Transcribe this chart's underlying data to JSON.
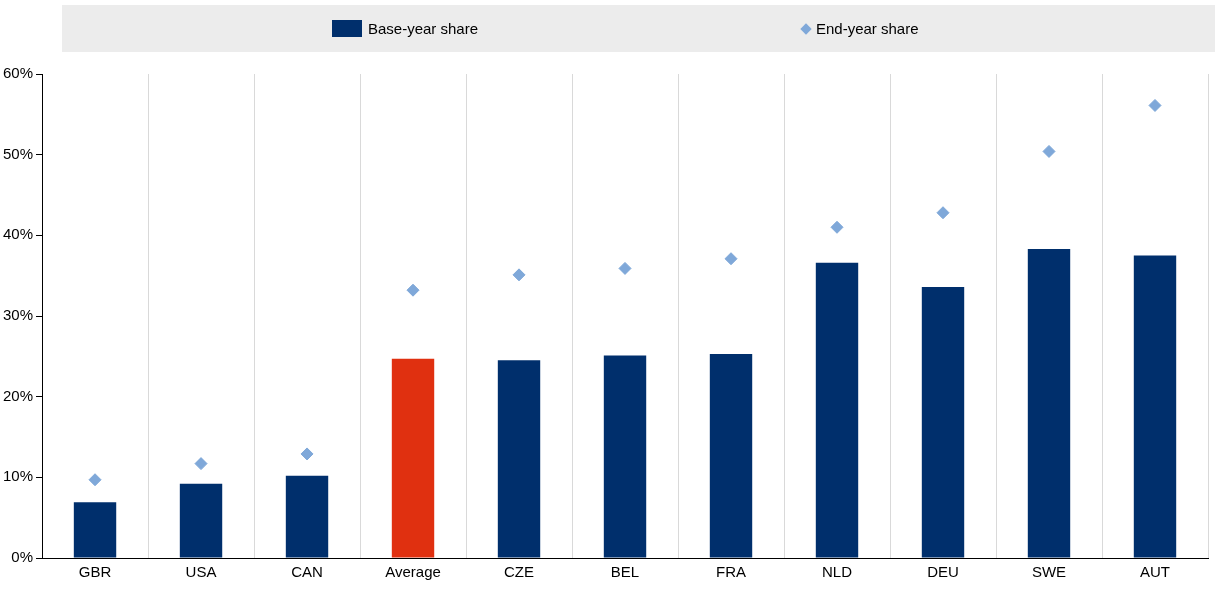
{
  "chart_data": {
    "type": "bar",
    "categories": [
      "GBR",
      "USA",
      "CAN",
      "Average",
      "CZE",
      "BEL",
      "FRA",
      "NLD",
      "DEU",
      "SWE",
      "AUT"
    ],
    "series": [
      {
        "name": "Base-year share",
        "color": "#002f6c",
        "colors": [
          "#002f6c",
          "#002f6c",
          "#002f6c",
          "#e03010",
          "#002f6c",
          "#002f6c",
          "#002f6c",
          "#002f6c",
          "#002f6c",
          "#002f6c",
          "#002f6c"
        ],
        "values": [
          6.9,
          9.2,
          10.2,
          24.7,
          24.5,
          25.1,
          25.3,
          36.6,
          33.6,
          38.3,
          37.5
        ]
      },
      {
        "name": "End-year share",
        "type": "scatter",
        "marker": "diamond",
        "color": "#7fa8d9",
        "x": [
          "GBR",
          "USA",
          "CAN",
          "Average",
          "CZE",
          "BEL",
          "FRA",
          "NLD",
          "DEU",
          "SWE",
          "AUT"
        ],
        "values": [
          9.7,
          11.7,
          12.9,
          33.2,
          35.1,
          35.9,
          37.1,
          41.0,
          42.8,
          50.4,
          56.1
        ]
      }
    ],
    "ylim": [
      0,
      60
    ],
    "yticks": [
      {
        "value": 0,
        "label": "0%"
      },
      {
        "value": 10,
        "label": "10%"
      },
      {
        "value": 20,
        "label": "20%"
      },
      {
        "value": 30,
        "label": "30%"
      },
      {
        "value": 40,
        "label": "40%"
      },
      {
        "value": 50,
        "label": "50%"
      },
      {
        "value": 60,
        "label": "60%"
      }
    ],
    "grid": "x",
    "legend": "top"
  }
}
